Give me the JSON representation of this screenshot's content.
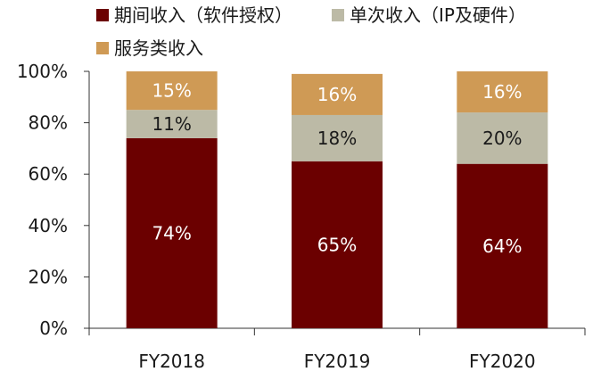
{
  "chart_data": {
    "type": "bar",
    "stacked": true,
    "percent": true,
    "categories": [
      "FY2018",
      "FY2019",
      "FY2020"
    ],
    "series": [
      {
        "name": "期间收入（软件授权）",
        "color": "#6b0000",
        "label_color": "#ffffff",
        "values": [
          74,
          65,
          64
        ],
        "labels": [
          "74%",
          "65%",
          "64%"
        ]
      },
      {
        "name": "单次收入（IP及硬件）",
        "color": "#bcbaa6",
        "label_color": "#1a1a1a",
        "values": [
          11,
          18,
          20
        ],
        "labels": [
          "11%",
          "18%",
          "20%"
        ]
      },
      {
        "name": "服务类收入",
        "color": "#cf9a55",
        "label_color": "#ffffff",
        "values": [
          15,
          16,
          16
        ],
        "labels": [
          "15%",
          "16%",
          "16%"
        ]
      }
    ],
    "ylim": [
      0,
      100
    ],
    "yticks": [
      0,
      20,
      40,
      60,
      80,
      100
    ],
    "ytick_labels": [
      "0%",
      "20%",
      "40%",
      "60%",
      "80%",
      "100%"
    ],
    "grid": false,
    "legend_position": "top"
  }
}
